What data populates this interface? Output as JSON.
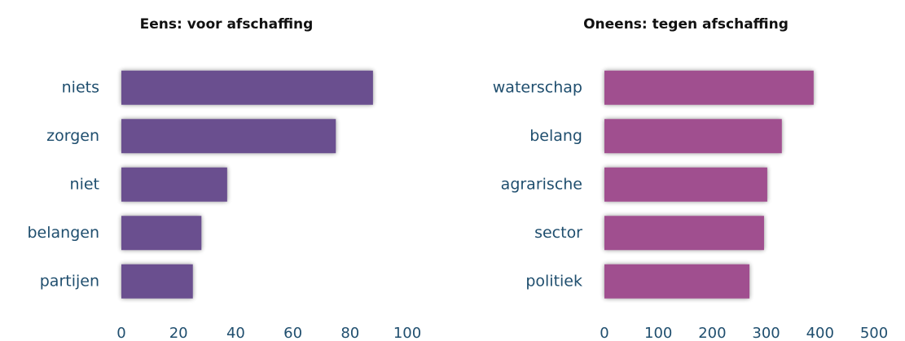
{
  "chart_data": [
    {
      "type": "bar",
      "orientation": "horizontal",
      "title": "Eens: voor afschaffing",
      "categories": [
        "niets",
        "zorgen",
        "niet",
        "belangen",
        "partijen"
      ],
      "values": [
        88,
        75,
        37,
        28,
        25
      ],
      "color": "#6a4f8f",
      "xlim": [
        0,
        100
      ],
      "xticks": [
        0,
        20,
        40,
        60,
        80,
        100
      ]
    },
    {
      "type": "bar",
      "orientation": "horizontal",
      "title": "Oneens: tegen afschaffing",
      "categories": [
        "waterschap",
        "belang",
        "agrarische",
        "sector",
        "politiek"
      ],
      "values": [
        388,
        329,
        302,
        296,
        269
      ],
      "color": "#a0508f",
      "xlim": [
        0,
        500
      ],
      "xticks": [
        0,
        100,
        200,
        300,
        400,
        500
      ]
    }
  ]
}
